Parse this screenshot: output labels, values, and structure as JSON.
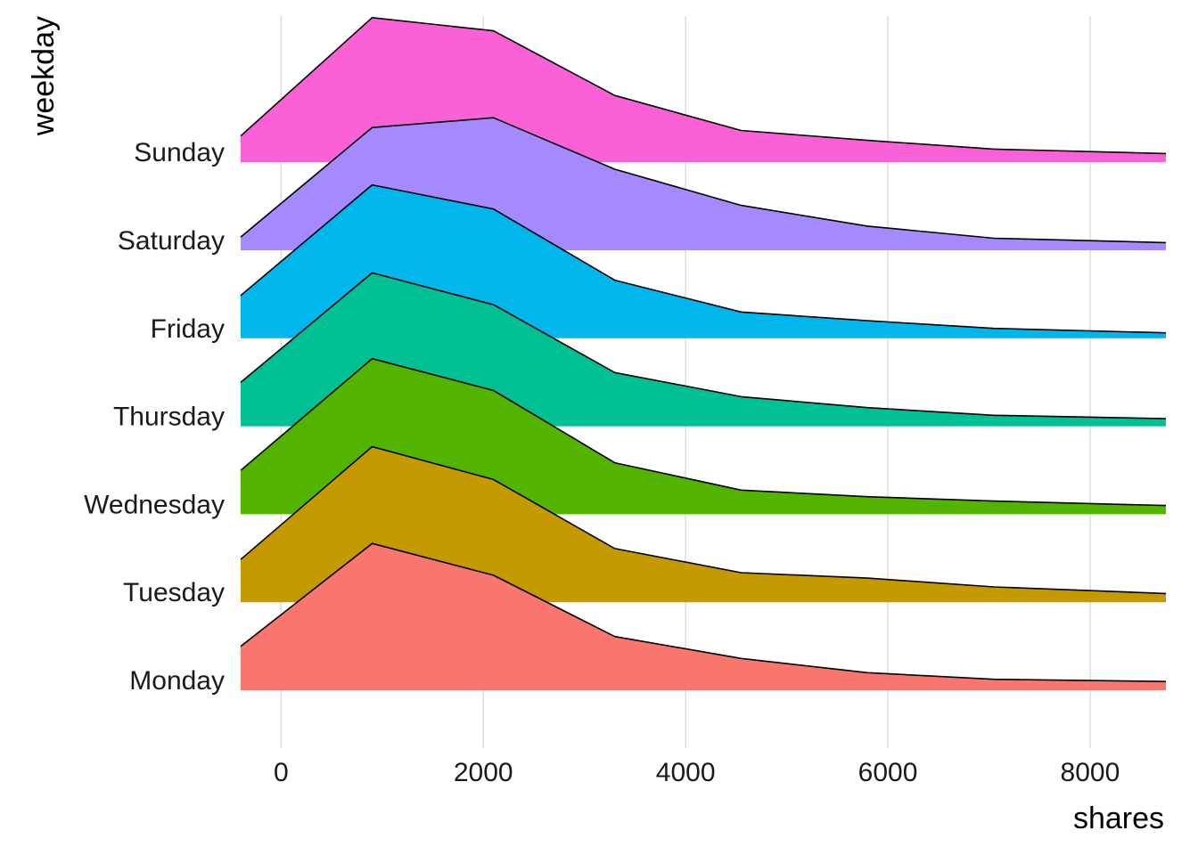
{
  "chart_data": {
    "type": "area",
    "subtype": "ridgeline",
    "xlabel": "shares",
    "ylabel": "weekday",
    "xlim": [
      -400,
      8750
    ],
    "x_ticks": [
      0,
      2000,
      4000,
      6000,
      8000
    ],
    "x_tick_labels": [
      "0",
      "2000",
      "4000",
      "6000",
      "8000"
    ],
    "grid": "vertical major gridlines",
    "legend": "none",
    "x": [
      -400,
      900,
      2100,
      3300,
      4550,
      5800,
      7050,
      8750
    ],
    "series": [
      {
        "name": "Monday",
        "color": "#F8766D",
        "values": [
          0.4,
          1.34,
          1.05,
          0.49,
          0.29,
          0.16,
          0.1,
          0.08
        ]
      },
      {
        "name": "Tuesday",
        "color": "#C49A00",
        "values": [
          0.39,
          1.42,
          1.12,
          0.49,
          0.27,
          0.22,
          0.14,
          0.08
        ]
      },
      {
        "name": "Wednesday",
        "color": "#53B400",
        "values": [
          0.4,
          1.42,
          1.13,
          0.47,
          0.22,
          0.16,
          0.12,
          0.08
        ]
      },
      {
        "name": "Thursday",
        "color": "#00C094",
        "values": [
          0.4,
          1.4,
          1.11,
          0.49,
          0.27,
          0.17,
          0.1,
          0.07
        ]
      },
      {
        "name": "Friday",
        "color": "#00B6EB",
        "values": [
          0.39,
          1.4,
          1.18,
          0.53,
          0.24,
          0.16,
          0.09,
          0.05
        ]
      },
      {
        "name": "Saturday",
        "color": "#A58AFF",
        "values": [
          0.12,
          1.12,
          1.21,
          0.74,
          0.41,
          0.22,
          0.11,
          0.07
        ]
      },
      {
        "name": "Sunday",
        "color": "#FB61D7",
        "values": [
          0.24,
          1.32,
          1.2,
          0.61,
          0.29,
          0.2,
          0.12,
          0.08
        ]
      }
    ]
  }
}
